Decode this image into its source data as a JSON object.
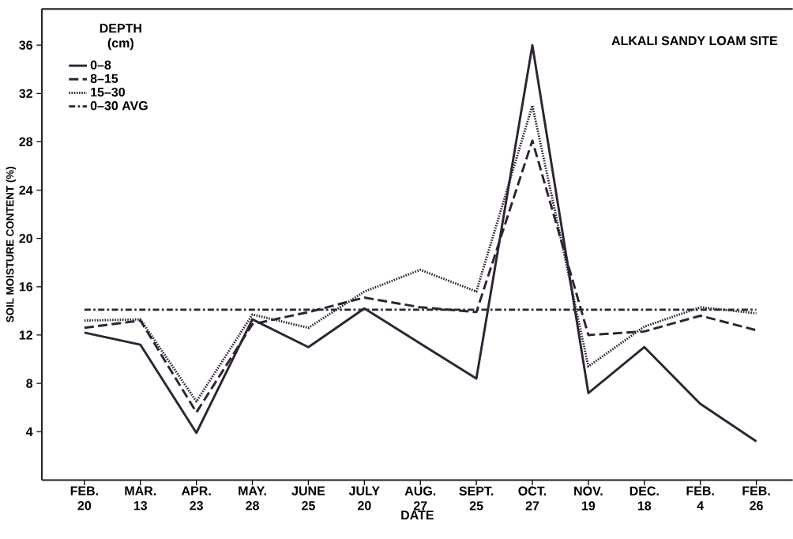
{
  "chart_data": {
    "type": "line",
    "title": "ALKALI SANDY LOAM SITE",
    "xlabel": "DATE",
    "ylabel": "SOIL MOISTURE CONTENT (%)",
    "legend_title": "DEPTH (cm)",
    "legend": "top left",
    "marker": "none",
    "categories": [
      "FEB. 20",
      "MAR. 13",
      "APR. 23",
      "MAY. 28",
      "JUNE 25",
      "JULY 20",
      "AUG. 27",
      "SEPT. 25",
      "OCT. 27",
      "NOV. 19",
      "DEC. 18",
      "FEB. 4",
      "FEB. 26"
    ],
    "ylim": [
      0,
      39
    ],
    "yticks": [
      4,
      8,
      12,
      16,
      20,
      24,
      28,
      32,
      36
    ],
    "series": [
      {
        "name": "0–8",
        "color": "#2e2433",
        "line_style": "solid",
        "values": [
          12.2,
          11.2,
          3.9,
          13.3,
          11.0,
          14.2,
          11.3,
          8.4,
          36,
          7.2,
          11.0,
          6.3,
          3.2
        ]
      },
      {
        "name": "8–15",
        "color": "#2e2433",
        "line_style": "dashed",
        "values": [
          12.6,
          13.2,
          5.6,
          12.9,
          13.9,
          15.1,
          14.3,
          13.9,
          28.1,
          12.0,
          12.3,
          13.6,
          12.4
        ]
      },
      {
        "name": "15–30",
        "color": "#2e2433",
        "line_style": "dotted",
        "values": [
          13.2,
          13.3,
          6.5,
          13.7,
          12.6,
          15.6,
          17.4,
          15.6,
          31,
          9.4,
          12.7,
          14.3,
          13.8
        ]
      },
      {
        "name": "0–30 AVG",
        "color": "#2e2433",
        "line_style": "dashdot",
        "values": [
          14.1,
          14.1,
          14.1,
          14.1,
          14.1,
          14.1,
          14.1,
          14.1,
          14.1,
          14.1,
          14.1,
          14.1,
          14.1
        ]
      }
    ]
  }
}
